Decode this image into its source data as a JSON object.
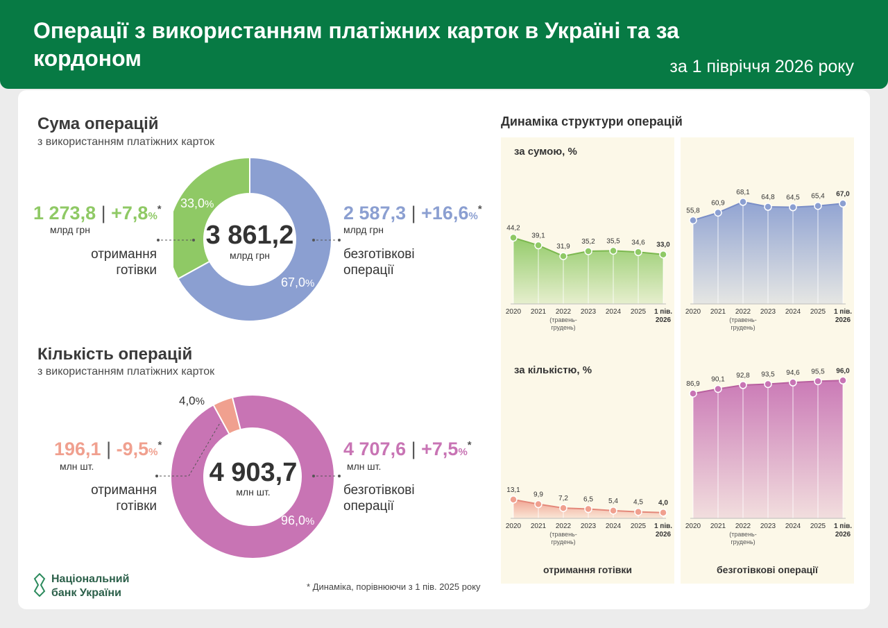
{
  "header": {
    "title": "Операції з використанням платіжних карток в Україні та за кордоном",
    "period": "за 1 півріччя 2026 року"
  },
  "sum": {
    "title": "Сума операцій",
    "subtitle": "з використанням платіжних карток",
    "total": "3 861,2",
    "total_unit": "млрд грн",
    "cash": {
      "value": "1 273,8",
      "change": "+7,8",
      "unit": "млрд грн",
      "label1": "отримання",
      "label2": "готівки",
      "share": 33.0,
      "share_text": "33,0"
    },
    "noncash": {
      "value": "2 587,3",
      "change": "+16,6",
      "unit": "млрд грн",
      "label1": "безготівкові",
      "label2": "операції",
      "share": 67.0,
      "share_text": "67,0"
    }
  },
  "count": {
    "title": "Кількість операцій",
    "subtitle": "з використанням платіжних карток",
    "total": "4 903,7",
    "total_unit": "млн шт.",
    "cash": {
      "value": "196,1",
      "change": "-9,5",
      "unit": "млн шт.",
      "label1": "отримання",
      "label2": "готівки",
      "share": 4.0,
      "share_text": "4,0"
    },
    "noncash": {
      "value": "4 707,6",
      "change": "+7,5",
      "unit": "млн шт.",
      "label1": "безготівкові",
      "label2": "операції",
      "share": 96.0,
      "share_text": "96,0"
    }
  },
  "symbols": {
    "sep": "|",
    "pct": "%",
    "star": "*"
  },
  "dynamics": {
    "title": "Динаміка структури операцій",
    "by_sum_label": "за сумою, %",
    "by_count_label": "за кількістю, %",
    "cash_label": "отримання готівки",
    "noncash_label": "безготівкові операції"
  },
  "footnote": "* Динаміка, порівнюючи з 1 пів. 2025 року",
  "logo": {
    "line1": "Національний",
    "line2": "банк України"
  },
  "colors": {
    "green": "#077a44",
    "cash_sum": "#8fc965",
    "noncash_sum": "#8b9fd1",
    "cash_count": "#f0a08f",
    "noncash_count": "#c874b4",
    "panel_bg": "#fcf8e8"
  },
  "chart_data": [
    {
      "type": "pie",
      "title": "Сума операцій",
      "categories": [
        "отримання готівки",
        "безготівкові операції"
      ],
      "values": [
        33.0,
        67.0
      ]
    },
    {
      "type": "pie",
      "title": "Кількість операцій",
      "categories": [
        "отримання готівки",
        "безготівкові операції"
      ],
      "values": [
        4.0,
        96.0
      ]
    },
    {
      "type": "area",
      "panel": "sum-cash",
      "x": [
        "2020",
        "2021",
        "2022",
        "2023",
        "2024",
        "2025",
        "1 пів. 2026"
      ],
      "x_note": "(травень-грудень)",
      "values": [
        44.2,
        39.1,
        31.9,
        35.2,
        35.5,
        34.6,
        33.0
      ],
      "labels": [
        "44,2",
        "39,1",
        "31,9",
        "35,2",
        "35,5",
        "34,6",
        "33,0"
      ]
    },
    {
      "type": "area",
      "panel": "sum-noncash",
      "x": [
        "2020",
        "2021",
        "2022",
        "2023",
        "2024",
        "2025",
        "1 пів. 2026"
      ],
      "x_note": "(травень-грудень)",
      "values": [
        55.8,
        60.9,
        68.1,
        64.8,
        64.5,
        65.4,
        67.0
      ],
      "labels": [
        "55,8",
        "60,9",
        "68,1",
        "64,8",
        "64,5",
        "65,4",
        "67,0"
      ]
    },
    {
      "type": "area",
      "panel": "count-cash",
      "x": [
        "2020",
        "2021",
        "2022",
        "2023",
        "2024",
        "2025",
        "1 пів. 2026"
      ],
      "x_note": "(травень-грудень)",
      "values": [
        13.1,
        9.9,
        7.2,
        6.5,
        5.4,
        4.5,
        4.0
      ],
      "labels": [
        "13,1",
        "9,9",
        "7,2",
        "6,5",
        "5,4",
        "4,5",
        "4,0"
      ]
    },
    {
      "type": "area",
      "panel": "count-noncash",
      "x": [
        "2020",
        "2021",
        "2022",
        "2023",
        "2024",
        "2025",
        "1 пів. 2026"
      ],
      "x_note": "(травень-грудень)",
      "values": [
        86.9,
        90.1,
        92.8,
        93.5,
        94.6,
        95.5,
        96.0
      ],
      "labels": [
        "86,9",
        "90,1",
        "92,8",
        "93,5",
        "94,6",
        "95,5",
        "96,0"
      ]
    }
  ]
}
